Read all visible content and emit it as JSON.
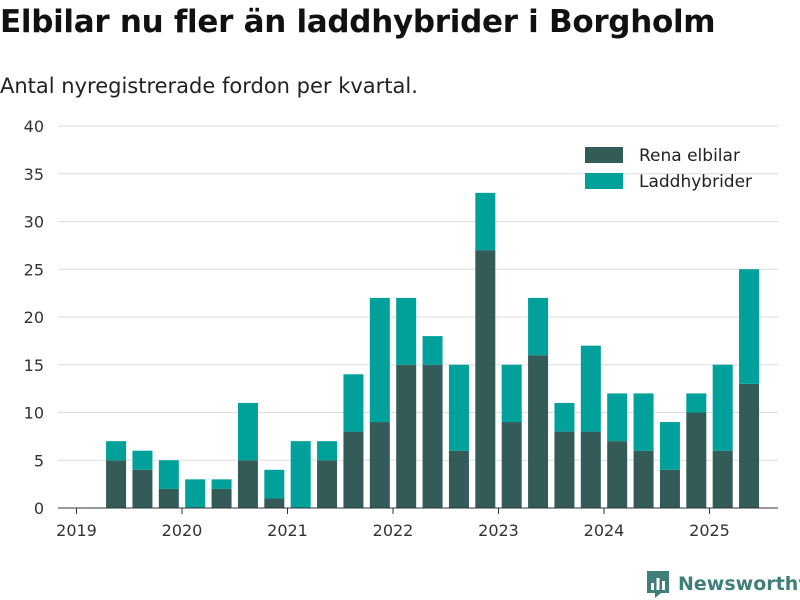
{
  "title": "Elbilar nu fler än laddhybrider i Borgholm",
  "subtitle": "Antal nyregistrerade fordon per kvartal.",
  "brand": "Newsworthy",
  "colors": {
    "electric": "#335c59",
    "hybrid": "#00a19a",
    "grid": "#dddddd",
    "axis": "#333333",
    "brand": "#3f7f7a"
  },
  "chart_data": {
    "type": "bar",
    "stacked": true,
    "x_tick_labels": [
      "2019",
      "2020",
      "2021",
      "2022",
      "2023",
      "2024",
      "2025"
    ],
    "categories": [
      "2019 Q2",
      "2019 Q3",
      "2019 Q4",
      "2020 Q1",
      "2020 Q2",
      "2020 Q3",
      "2020 Q4",
      "2021 Q1",
      "2021 Q2",
      "2021 Q3",
      "2021 Q4",
      "2022 Q1",
      "2022 Q2",
      "2022 Q3",
      "2022 Q4",
      "2023 Q1",
      "2023 Q2",
      "2023 Q3",
      "2023 Q4",
      "2024 Q1",
      "2024 Q2",
      "2024 Q3",
      "2024 Q4",
      "2025 Q1",
      "2025 Q2"
    ],
    "series": [
      {
        "name": "Rena elbilar",
        "color": "#335c59",
        "values": [
          5,
          4,
          2,
          0,
          2,
          5,
          1,
          0,
          5,
          8,
          9,
          15,
          15,
          6,
          27,
          9,
          16,
          8,
          8,
          7,
          6,
          4,
          10,
          6,
          13
        ]
      },
      {
        "name": "Laddhybrider",
        "color": "#00a19a",
        "values": [
          2,
          2,
          3,
          3,
          1,
          6,
          3,
          7,
          2,
          6,
          13,
          7,
          3,
          9,
          6,
          6,
          6,
          3,
          9,
          5,
          6,
          5,
          2,
          9,
          12
        ]
      }
    ],
    "ylim": [
      0,
      40
    ],
    "yticks": [
      0,
      5,
      10,
      15,
      20,
      25,
      30,
      35,
      40
    ],
    "grid": true,
    "legend_position": "top-right"
  }
}
